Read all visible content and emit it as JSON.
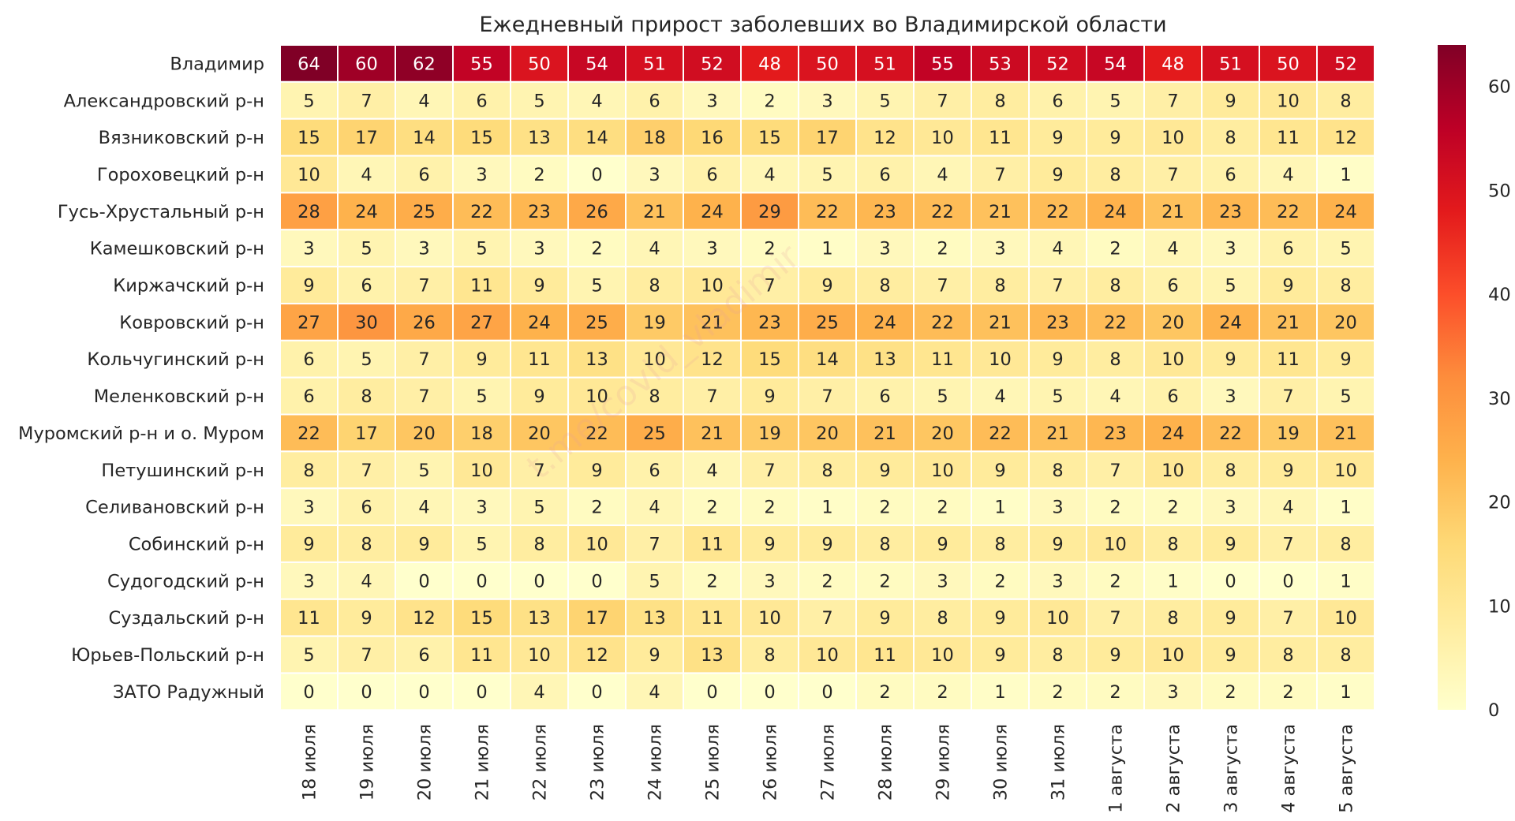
{
  "chart_data": {
    "type": "heatmap",
    "title": "Ежедневный прирост заболевших во Владимирской области",
    "watermark": "t.me/covid_vladimir",
    "colormap": "YlOrRd",
    "vmin": 0,
    "vmax": 64,
    "colorbar_ticks": [
      0,
      10,
      20,
      30,
      40,
      50,
      60
    ],
    "columns": [
      "18 июля",
      "19 июля",
      "20 июля",
      "21 июля",
      "22 июля",
      "23 июля",
      "24 июля",
      "25 июля",
      "26 июля",
      "27 июля",
      "28 июля",
      "29 июля",
      "30 июля",
      "31 июля",
      "1 августа",
      "2 августа",
      "3 августа",
      "4 августа",
      "5 августа"
    ],
    "rows": [
      "Владимир",
      "Александровский р-н",
      "Вязниковский р-н",
      "Гороховецкий р-н",
      "Гусь-Хрустальный р-н",
      "Камешковский р-н",
      "Киржачский р-н",
      "Ковровский р-н",
      "Кольчугинский р-н",
      "Меленковский р-н",
      "Муромский р-н и о. Муром",
      "Петушинский р-н",
      "Селивановский р-н",
      "Собинский р-н",
      "Судогодский р-н",
      "Суздальский р-н",
      "Юрьев-Польский р-н",
      "ЗАТО Радужный"
    ],
    "values": [
      [
        64,
        60,
        62,
        55,
        50,
        54,
        51,
        52,
        48,
        50,
        51,
        55,
        53,
        52,
        54,
        48,
        51,
        50,
        52
      ],
      [
        5,
        7,
        4,
        6,
        5,
        4,
        6,
        3,
        2,
        3,
        5,
        7,
        8,
        6,
        5,
        7,
        9,
        10,
        8
      ],
      [
        15,
        17,
        14,
        15,
        13,
        14,
        18,
        16,
        15,
        17,
        12,
        10,
        11,
        9,
        9,
        10,
        8,
        11,
        12
      ],
      [
        10,
        4,
        6,
        3,
        2,
        0,
        3,
        6,
        4,
        5,
        6,
        4,
        7,
        9,
        8,
        7,
        6,
        4,
        1
      ],
      [
        28,
        24,
        25,
        22,
        23,
        26,
        21,
        24,
        29,
        22,
        23,
        22,
        21,
        22,
        24,
        21,
        23,
        22,
        24
      ],
      [
        3,
        5,
        3,
        5,
        3,
        2,
        4,
        3,
        2,
        1,
        3,
        2,
        3,
        4,
        2,
        4,
        3,
        6,
        5
      ],
      [
        9,
        6,
        7,
        11,
        9,
        5,
        8,
        10,
        7,
        9,
        8,
        7,
        8,
        7,
        8,
        6,
        5,
        9,
        8
      ],
      [
        27,
        30,
        26,
        27,
        24,
        25,
        19,
        21,
        23,
        25,
        24,
        22,
        21,
        23,
        22,
        20,
        24,
        21,
        20
      ],
      [
        6,
        5,
        7,
        9,
        11,
        13,
        10,
        12,
        15,
        14,
        13,
        11,
        10,
        9,
        8,
        10,
        9,
        11,
        9
      ],
      [
        6,
        8,
        7,
        5,
        9,
        10,
        8,
        7,
        9,
        7,
        6,
        5,
        4,
        5,
        4,
        6,
        3,
        7,
        5
      ],
      [
        22,
        17,
        20,
        18,
        20,
        22,
        25,
        21,
        19,
        20,
        21,
        20,
        22,
        21,
        23,
        24,
        22,
        19,
        21
      ],
      [
        8,
        7,
        5,
        10,
        7,
        9,
        6,
        4,
        7,
        8,
        9,
        10,
        9,
        8,
        7,
        10,
        8,
        9,
        10
      ],
      [
        3,
        6,
        4,
        3,
        5,
        2,
        4,
        2,
        2,
        1,
        2,
        2,
        1,
        3,
        2,
        2,
        3,
        4,
        1
      ],
      [
        9,
        8,
        9,
        5,
        8,
        10,
        7,
        11,
        9,
        9,
        8,
        9,
        8,
        9,
        10,
        8,
        9,
        7,
        8
      ],
      [
        3,
        4,
        0,
        0,
        0,
        0,
        5,
        2,
        3,
        2,
        2,
        3,
        2,
        3,
        2,
        1,
        0,
        0,
        1
      ],
      [
        11,
        9,
        12,
        15,
        13,
        17,
        13,
        11,
        10,
        7,
        9,
        8,
        9,
        10,
        7,
        8,
        9,
        7,
        10
      ],
      [
        5,
        7,
        6,
        11,
        10,
        12,
        9,
        13,
        8,
        10,
        11,
        10,
        9,
        8,
        9,
        10,
        9,
        8,
        8
      ],
      [
        0,
        0,
        0,
        0,
        4,
        0,
        4,
        0,
        0,
        0,
        2,
        2,
        1,
        2,
        2,
        3,
        2,
        2,
        1
      ]
    ]
  }
}
